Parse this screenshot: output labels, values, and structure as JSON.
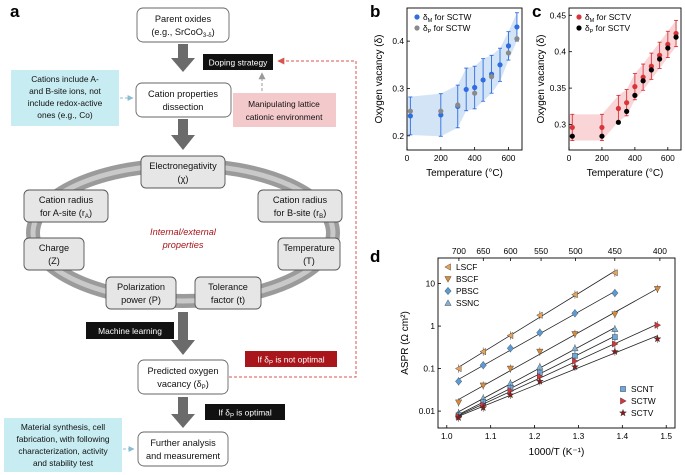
{
  "figure": {
    "panel_a": {
      "label": "a",
      "parent_oxides_line1": "Parent oxides",
      "parent_oxides_line2": "(e.g., SrCoO",
      "parent_oxides_sub": "3-δ",
      "parent_oxides_close": ")",
      "doping_strategy": "Doping strategy",
      "cation_note_line1": "Cations include A-",
      "cation_note_line2": "and B-site ions, not",
      "cation_note_line3": "include redox-active",
      "cation_note_line4": "ones (e.g., Co)",
      "cation_dissection_line1": "Cation properties",
      "cation_dissection_line2": "dissection",
      "manipulating_line1": "Manipulating lattice",
      "manipulating_line2": "cationic environment",
      "electronegativity_line1": "Electronegativity",
      "electronegativity_line2": "(χ)",
      "radius_a_line1": "Cation radius",
      "radius_a_line2": "for A-site (r",
      "radius_a_sub": "A",
      "radius_b_line1": "Cation radius",
      "radius_b_line2": "for B-site (r",
      "radius_b_sub": "B",
      "internal_line1": "Internal/external",
      "internal_line2": "properties",
      "charge_line1": "Charge",
      "charge_line2": "(Z)",
      "temperature_line1": "Temperature",
      "temperature_line2": "(T)",
      "polarization_line1": "Polarization",
      "polarization_line2": "power (P)",
      "tolerance_line1": "Tolerance",
      "tolerance_line2": "factor (t)",
      "machine_learning": "Machine learning",
      "predicted_line1": "Predicted oxygen",
      "predicted_line2": "vacancy (δ",
      "predicted_sub": "P",
      "not_optimal_pre": "If δ",
      "not_optimal_sub": "P",
      "not_optimal_post": " is not optimal",
      "optimal_pre": "If δ",
      "optimal_sub": "P",
      "optimal_post": " is optimal",
      "synthesis_line1": "Material synthesis, cell",
      "synthesis_line2": "fabrication, with following",
      "synthesis_line3": "characterization, activity",
      "synthesis_line4": "and stability test",
      "further_line1": "Further analysis",
      "further_line2": "and measurement"
    },
    "colors": {
      "blue_box": "#c7ecf2",
      "red_box": "#f4c9cb",
      "dark_red": "#a8151b",
      "arrow_gray": "#6b6b6b",
      "dash_red": "#d9534f"
    }
  },
  "chart_data": [
    {
      "panel": "b",
      "type": "scatter",
      "xlabel": "Temperature (°C)",
      "ylabel": "Oxygen vacancy (δ)",
      "xlim": [
        0,
        680
      ],
      "ylim": [
        0.17,
        0.47
      ],
      "xticks": [
        0,
        200,
        400,
        600
      ],
      "yticks": [
        0.2,
        0.3,
        0.4
      ],
      "legend": [
        "δ_M for SCTW",
        "δ_P for SCTW"
      ],
      "legend_prefix": "δ",
      "legend_subs": [
        "M",
        "P"
      ],
      "legend_suffix": " for SCTW",
      "series": [
        {
          "name": "δM for SCTW",
          "color": "#2f6de0",
          "x": [
            20,
            200,
            300,
            350,
            400,
            450,
            500,
            550,
            600,
            650
          ],
          "y": [
            0.242,
            0.244,
            0.262,
            0.298,
            0.302,
            0.318,
            0.33,
            0.35,
            0.39,
            0.43
          ],
          "err": [
            0.04,
            0.045,
            0.045,
            0.045,
            0.045,
            0.045,
            0.04,
            0.035,
            0.03,
            0.03
          ]
        },
        {
          "name": "δP for SCTW",
          "color": "#8a8a8a",
          "x": [
            20,
            200,
            300,
            400,
            500,
            600,
            650
          ],
          "y": [
            0.252,
            0.252,
            0.265,
            0.29,
            0.325,
            0.375,
            0.405
          ],
          "err": [
            0,
            0,
            0,
            0,
            0,
            0,
            0
          ]
        }
      ],
      "band_color": "#9cc3ec"
    },
    {
      "panel": "c",
      "type": "scatter",
      "xlabel": "Temperature (°C)",
      "ylabel": "Oxygen vacancy (δ)",
      "xlim": [
        0,
        680
      ],
      "ylim": [
        0.265,
        0.46
      ],
      "xticks": [
        0,
        200,
        400,
        600
      ],
      "yticks": [
        0.3,
        0.35,
        0.4,
        0.45
      ],
      "legend": [
        "δ_M for SCTV",
        "δ_P for SCTV"
      ],
      "legend_prefix": "δ",
      "legend_subs": [
        "M",
        "P"
      ],
      "legend_suffix": " for SCTV",
      "series": [
        {
          "name": "δM for SCTV",
          "color": "#d8343a",
          "x": [
            20,
            200,
            300,
            350,
            400,
            450,
            500,
            550,
            600,
            650
          ],
          "y": [
            0.296,
            0.296,
            0.322,
            0.33,
            0.352,
            0.365,
            0.38,
            0.395,
            0.41,
            0.425
          ],
          "err": [
            0.018,
            0.018,
            0.018,
            0.018,
            0.018,
            0.018,
            0.018,
            0.018,
            0.018,
            0.018
          ]
        },
        {
          "name": "δP for SCTV",
          "color": "#000000",
          "x": [
            20,
            200,
            300,
            350,
            400,
            450,
            500,
            550,
            600,
            650
          ],
          "y": [
            0.284,
            0.284,
            0.303,
            0.318,
            0.34,
            0.36,
            0.375,
            0.39,
            0.405,
            0.42
          ],
          "err": [
            0,
            0,
            0,
            0,
            0,
            0,
            0,
            0,
            0,
            0
          ]
        }
      ],
      "band_color": "#f2a2a6"
    },
    {
      "panel": "d",
      "type": "scatter",
      "xlabel": "1000/T (K⁻¹)",
      "ylabel": "ASPR (Ω cm²)",
      "yscale": "log",
      "xlim": [
        0.98,
        1.52
      ],
      "ylim": [
        0.004,
        40
      ],
      "xticks": [
        1.0,
        1.1,
        1.2,
        1.3,
        1.4,
        1.5
      ],
      "yticks": [
        0.01,
        0.1,
        1,
        10
      ],
      "top_axis_ticks": [
        700,
        650,
        600,
        550,
        500,
        450,
        400
      ],
      "series": [
        {
          "name": "LSCF",
          "marker": "tri-left",
          "color": "#e8a25a",
          "x": [
            1.027,
            1.083,
            1.145,
            1.212,
            1.292,
            1.383
          ],
          "y": [
            0.1,
            0.25,
            0.6,
            1.8,
            5.5,
            18
          ]
        },
        {
          "name": "BSCF",
          "marker": "tri-down",
          "color": "#d98a3a",
          "x": [
            1.027,
            1.083,
            1.145,
            1.212,
            1.292,
            1.383,
            1.48
          ],
          "y": [
            0.016,
            0.04,
            0.1,
            0.25,
            0.65,
            1.9,
            7.5
          ]
        },
        {
          "name": "PBSC",
          "marker": "diamond",
          "color": "#5b9bd5",
          "x": [
            1.027,
            1.083,
            1.145,
            1.212,
            1.292,
            1.383
          ],
          "y": [
            0.05,
            0.12,
            0.3,
            0.7,
            2.0,
            6.0
          ]
        },
        {
          "name": "SSNC",
          "marker": "tri-up",
          "color": "#7fb3d9",
          "x": [
            1.027,
            1.083,
            1.145,
            1.212,
            1.292,
            1.383
          ],
          "y": [
            0.009,
            0.02,
            0.045,
            0.11,
            0.3,
            0.85
          ]
        },
        {
          "name": "SCNT",
          "marker": "square",
          "color": "#6fa8dc",
          "x": [
            1.027,
            1.083,
            1.145,
            1.212,
            1.292,
            1.383
          ],
          "y": [
            0.008,
            0.016,
            0.035,
            0.08,
            0.2,
            0.55
          ]
        },
        {
          "name": "SCTW",
          "marker": "tri-right",
          "color": "#d8343a",
          "x": [
            1.027,
            1.083,
            1.145,
            1.212,
            1.292,
            1.383,
            1.48
          ],
          "y": [
            0.0075,
            0.014,
            0.03,
            0.065,
            0.15,
            0.38,
            1.05
          ]
        },
        {
          "name": "SCTV",
          "marker": "star",
          "color": "#8b1a1a",
          "x": [
            1.027,
            1.083,
            1.145,
            1.212,
            1.292,
            1.383,
            1.48
          ],
          "y": [
            0.007,
            0.012,
            0.024,
            0.05,
            0.11,
            0.25,
            0.5
          ]
        }
      ]
    }
  ]
}
